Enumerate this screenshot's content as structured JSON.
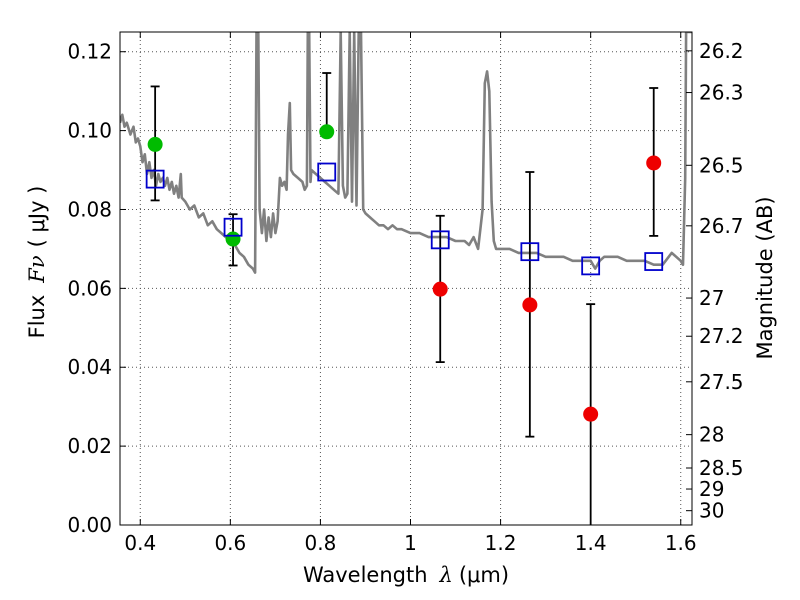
{
  "chart_data": {
    "type": "scatter",
    "xlabel_prefix": "Wavelength",
    "xlabel_symbol": "λ",
    "xlabel_units": "(μm)",
    "ylabel_prefix": "Flux",
    "ylabel_symbol": "Fν",
    "ylabel_units": "( μJy )",
    "y2label": "Magnitude (AB)",
    "xlim": [
      0.355,
      1.625
    ],
    "ylim": [
      0.0,
      0.125
    ],
    "grid": true,
    "x_ticks": [
      {
        "value": 0.4,
        "label": "0.4"
      },
      {
        "value": 0.6,
        "label": "0.6"
      },
      {
        "value": 0.8,
        "label": "0.8"
      },
      {
        "value": 1.0,
        "label": "1"
      },
      {
        "value": 1.2,
        "label": "1.2"
      },
      {
        "value": 1.4,
        "label": "1.4"
      },
      {
        "value": 1.6,
        "label": "1.6"
      }
    ],
    "y_ticks": [
      {
        "value": 0.0,
        "label": "0.00"
      },
      {
        "value": 0.02,
        "label": "0.02"
      },
      {
        "value": 0.04,
        "label": "0.04"
      },
      {
        "value": 0.06,
        "label": "0.06"
      },
      {
        "value": 0.08,
        "label": "0.08"
      },
      {
        "value": 0.1,
        "label": "0.10"
      },
      {
        "value": 0.12,
        "label": "0.12"
      }
    ],
    "mag_ticks": [
      {
        "mag": 26.2,
        "label": "26.2"
      },
      {
        "mag": 26.3,
        "label": "26.3"
      },
      {
        "mag": 26.5,
        "label": "26.5"
      },
      {
        "mag": 26.7,
        "label": "26.7"
      },
      {
        "mag": 27.0,
        "label": "27"
      },
      {
        "mag": 27.2,
        "label": "27.2"
      },
      {
        "mag": 27.5,
        "label": "27.5"
      },
      {
        "mag": 28.0,
        "label": "28"
      },
      {
        "mag": 28.5,
        "label": "28.5"
      },
      {
        "mag": 29.0,
        "label": "29"
      },
      {
        "mag": 30.0,
        "label": "30"
      }
    ],
    "sed_color": "#808080",
    "sed_model": [
      [
        0.355,
        0.102
      ],
      [
        0.36,
        0.104
      ],
      [
        0.365,
        0.101
      ],
      [
        0.37,
        0.102
      ],
      [
        0.378,
        0.099
      ],
      [
        0.385,
        0.101
      ],
      [
        0.39,
        0.097
      ],
      [
        0.395,
        0.098
      ],
      [
        0.4,
        0.096
      ],
      [
        0.405,
        0.092
      ],
      [
        0.41,
        0.094
      ],
      [
        0.415,
        0.089
      ],
      [
        0.42,
        0.092
      ],
      [
        0.425,
        0.088
      ],
      [
        0.43,
        0.09
      ],
      [
        0.435,
        0.086
      ],
      [
        0.44,
        0.089
      ],
      [
        0.445,
        0.087
      ],
      [
        0.45,
        0.088
      ],
      [
        0.455,
        0.086
      ],
      [
        0.46,
        0.088
      ],
      [
        0.465,
        0.085
      ],
      [
        0.47,
        0.087
      ],
      [
        0.475,
        0.084
      ],
      [
        0.48,
        0.086
      ],
      [
        0.485,
        0.083
      ],
      [
        0.49,
        0.089
      ],
      [
        0.492,
        0.083
      ],
      [
        0.5,
        0.082
      ],
      [
        0.51,
        0.08
      ],
      [
        0.52,
        0.081
      ],
      [
        0.53,
        0.078
      ],
      [
        0.54,
        0.079
      ],
      [
        0.55,
        0.076
      ],
      [
        0.56,
        0.077
      ],
      [
        0.57,
        0.075
      ],
      [
        0.58,
        0.074
      ],
      [
        0.59,
        0.073
      ],
      [
        0.6,
        0.072
      ],
      [
        0.61,
        0.071
      ],
      [
        0.62,
        0.069
      ],
      [
        0.63,
        0.068
      ],
      [
        0.64,
        0.066
      ],
      [
        0.65,
        0.065
      ],
      [
        0.655,
        0.064
      ],
      [
        0.658,
        0.125
      ],
      [
        0.662,
        0.125
      ],
      [
        0.665,
        0.08
      ],
      [
        0.67,
        0.074
      ],
      [
        0.675,
        0.08
      ],
      [
        0.68,
        0.072
      ],
      [
        0.685,
        0.078
      ],
      [
        0.69,
        0.073
      ],
      [
        0.695,
        0.079
      ],
      [
        0.7,
        0.074
      ],
      [
        0.705,
        0.077
      ],
      [
        0.71,
        0.088
      ],
      [
        0.715,
        0.086
      ],
      [
        0.72,
        0.087
      ],
      [
        0.725,
        0.085
      ],
      [
        0.728,
        0.099
      ],
      [
        0.732,
        0.107
      ],
      [
        0.735,
        0.09
      ],
      [
        0.74,
        0.089
      ],
      [
        0.75,
        0.088
      ],
      [
        0.76,
        0.087
      ],
      [
        0.765,
        0.085
      ],
      [
        0.77,
        0.086
      ],
      [
        0.772,
        0.125
      ],
      [
        0.775,
        0.125
      ],
      [
        0.778,
        0.087
      ],
      [
        0.78,
        0.09
      ],
      [
        0.79,
        0.089
      ],
      [
        0.8,
        0.088
      ],
      [
        0.81,
        0.087
      ],
      [
        0.82,
        0.086
      ],
      [
        0.83,
        0.085
      ],
      [
        0.84,
        0.084
      ],
      [
        0.845,
        0.125
      ],
      [
        0.85,
        0.086
      ],
      [
        0.855,
        0.083
      ],
      [
        0.86,
        0.084
      ],
      [
        0.865,
        0.125
      ],
      [
        0.87,
        0.082
      ],
      [
        0.875,
        0.125
      ],
      [
        0.88,
        0.081
      ],
      [
        0.885,
        0.125
      ],
      [
        0.89,
        0.125
      ],
      [
        0.895,
        0.08
      ],
      [
        0.9,
        0.079
      ],
      [
        0.91,
        0.078
      ],
      [
        0.92,
        0.077
      ],
      [
        0.93,
        0.076
      ],
      [
        0.94,
        0.076
      ],
      [
        0.95,
        0.075
      ],
      [
        0.96,
        0.076
      ],
      [
        0.97,
        0.075
      ],
      [
        0.98,
        0.075
      ],
      [
        1.0,
        0.074
      ],
      [
        1.02,
        0.074
      ],
      [
        1.04,
        0.073
      ],
      [
        1.06,
        0.073
      ],
      [
        1.08,
        0.073
      ],
      [
        1.1,
        0.072
      ],
      [
        1.12,
        0.072
      ],
      [
        1.13,
        0.071
      ],
      [
        1.14,
        0.073
      ],
      [
        1.15,
        0.07
      ],
      [
        1.16,
        0.08
      ],
      [
        1.165,
        0.112
      ],
      [
        1.17,
        0.115
      ],
      [
        1.175,
        0.11
      ],
      [
        1.18,
        0.082
      ],
      [
        1.185,
        0.072
      ],
      [
        1.19,
        0.07
      ],
      [
        1.2,
        0.07
      ],
      [
        1.22,
        0.07
      ],
      [
        1.24,
        0.069
      ],
      [
        1.26,
        0.069
      ],
      [
        1.28,
        0.069
      ],
      [
        1.3,
        0.068
      ],
      [
        1.32,
        0.068
      ],
      [
        1.34,
        0.068
      ],
      [
        1.36,
        0.067
      ],
      [
        1.38,
        0.067
      ],
      [
        1.4,
        0.067
      ],
      [
        1.41,
        0.065
      ],
      [
        1.42,
        0.067
      ],
      [
        1.43,
        0.068
      ],
      [
        1.44,
        0.068
      ],
      [
        1.46,
        0.068
      ],
      [
        1.48,
        0.067
      ],
      [
        1.5,
        0.067
      ],
      [
        1.52,
        0.067
      ],
      [
        1.54,
        0.066
      ],
      [
        1.56,
        0.066
      ],
      [
        1.58,
        0.069
      ],
      [
        1.59,
        0.068
      ],
      [
        1.6,
        0.067
      ],
      [
        1.605,
        0.066
      ],
      [
        1.61,
        0.088
      ],
      [
        1.612,
        0.125
      ],
      [
        1.62,
        0.125
      ],
      [
        1.625,
        0.125
      ]
    ],
    "model_points": {
      "color": "#0000cc",
      "points": [
        {
          "x": 0.433,
          "y": 0.0877
        },
        {
          "x": 0.606,
          "y": 0.0755
        },
        {
          "x": 0.814,
          "y": 0.0895
        },
        {
          "x": 1.066,
          "y": 0.0723
        },
        {
          "x": 1.265,
          "y": 0.0693
        },
        {
          "x": 1.4,
          "y": 0.0657
        },
        {
          "x": 1.54,
          "y": 0.0668
        }
      ]
    },
    "observed": [
      {
        "x": 0.433,
        "y": 0.0965,
        "err_low": 0.0823,
        "err_high": 0.1112,
        "color": "#00bb00"
      },
      {
        "x": 0.606,
        "y": 0.0725,
        "err_low": 0.0658,
        "err_high": 0.0788,
        "color": "#00bb00"
      },
      {
        "x": 0.814,
        "y": 0.0997,
        "err_low": null,
        "err_high": 0.1146,
        "color": "#00bb00"
      },
      {
        "x": 1.066,
        "y": 0.0598,
        "err_low": 0.0413,
        "err_high": 0.0784,
        "color": "#ee0000"
      },
      {
        "x": 1.265,
        "y": 0.0558,
        "err_low": 0.0224,
        "err_high": 0.0895,
        "color": "#ee0000"
      },
      {
        "x": 1.4,
        "y": 0.0281,
        "err_low": 0.0,
        "err_high": 0.056,
        "color": "#ee0000"
      },
      {
        "x": 1.54,
        "y": 0.0918,
        "err_low": 0.0733,
        "err_high": 0.1108,
        "color": "#ee0000"
      }
    ]
  }
}
